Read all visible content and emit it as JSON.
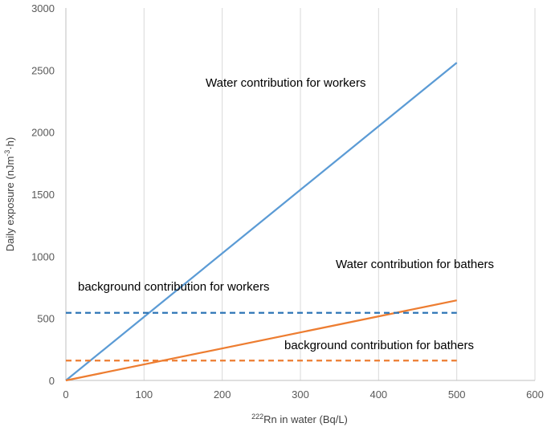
{
  "chart_data": {
    "type": "line",
    "xlabel_sup": "222",
    "xlabel_main": "Rn in water (Bq/L)",
    "ylabel_main": "Daily exposure (nJm",
    "ylabel_sup": "-3",
    "ylabel_end": "·h)",
    "xlim": [
      0,
      600
    ],
    "ylim": [
      0,
      3000
    ],
    "xticks": [
      "0",
      "100",
      "200",
      "300",
      "400",
      "500",
      "600"
    ],
    "yticks": [
      "0",
      "500",
      "1000",
      "1500",
      "2000",
      "2500",
      "3000"
    ],
    "grid": "vertical",
    "series": [
      {
        "key": "water_workers",
        "x": [
          0,
          500
        ],
        "y": [
          0,
          2560
        ],
        "color": "#5B9BD5",
        "dash": false
      },
      {
        "key": "water_bathers",
        "x": [
          0,
          500
        ],
        "y": [
          0,
          645
        ],
        "color": "#ED7D31",
        "dash": false
      },
      {
        "key": "background_workers",
        "x": [
          0,
          500
        ],
        "y": [
          545,
          545
        ],
        "color": "#2E75B6",
        "dash": true
      },
      {
        "key": "background_bathers",
        "x": [
          0,
          500
        ],
        "y": [
          160,
          160
        ],
        "color": "#ED7D31",
        "dash": true
      }
    ],
    "annotations": {
      "water_workers": "Water contribution  for workers",
      "water_bathers": "Water contribution for bathers",
      "background_workers": "background contribution for workers",
      "background_bathers": "background contribution for bathers"
    }
  }
}
